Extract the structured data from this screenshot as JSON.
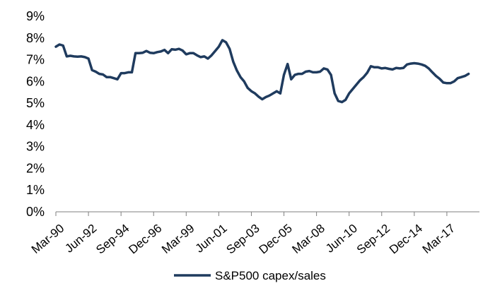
{
  "chart_data": {
    "type": "line",
    "title": "",
    "xlabel": "",
    "ylabel": "",
    "ylim": [
      0,
      9
    ],
    "xlim": [
      "1990-03",
      "2019-06"
    ],
    "y_ticks": [
      "0%",
      "1%",
      "2%",
      "3%",
      "4%",
      "5%",
      "6%",
      "7%",
      "8%",
      "9%"
    ],
    "x_ticks": [
      {
        "label": "Mar-90",
        "date": "1990-03"
      },
      {
        "label": "Jun-92",
        "date": "1992-06"
      },
      {
        "label": "Sep-94",
        "date": "1994-09"
      },
      {
        "label": "Dec-96",
        "date": "1996-12"
      },
      {
        "label": "Mar-99",
        "date": "1999-03"
      },
      {
        "label": "Jun-01",
        "date": "2001-06"
      },
      {
        "label": "Sep-03",
        "date": "2003-09"
      },
      {
        "label": "Dec-05",
        "date": "2005-12"
      },
      {
        "label": "Mar-08",
        "date": "2008-03"
      },
      {
        "label": "Jun-10",
        "date": "2010-06"
      },
      {
        "label": "Sep-12",
        "date": "2012-09"
      },
      {
        "label": "Dec-14",
        "date": "2014-12"
      },
      {
        "label": "Mar-17",
        "date": "2017-03"
      }
    ],
    "grid": false,
    "legend_position": "bottom",
    "series": [
      {
        "name": "S&P500 capex/sales",
        "color": "#1f3b5e",
        "points": [
          [
            "1990-03",
            7.6
          ],
          [
            "1990-06",
            7.7
          ],
          [
            "1990-09",
            7.65
          ],
          [
            "1990-12",
            7.15
          ],
          [
            "1991-03",
            7.18
          ],
          [
            "1991-06",
            7.15
          ],
          [
            "1991-09",
            7.14
          ],
          [
            "1991-12",
            7.15
          ],
          [
            "1992-03",
            7.12
          ],
          [
            "1992-06",
            7.05
          ],
          [
            "1992-09",
            6.52
          ],
          [
            "1992-12",
            6.45
          ],
          [
            "1993-03",
            6.35
          ],
          [
            "1993-06",
            6.32
          ],
          [
            "1993-09",
            6.2
          ],
          [
            "1993-12",
            6.2
          ],
          [
            "1994-03",
            6.15
          ],
          [
            "1994-06",
            6.1
          ],
          [
            "1994-09",
            6.38
          ],
          [
            "1994-12",
            6.38
          ],
          [
            "1995-03",
            6.42
          ],
          [
            "1995-06",
            6.42
          ],
          [
            "1995-09",
            7.3
          ],
          [
            "1995-12",
            7.3
          ],
          [
            "1996-03",
            7.32
          ],
          [
            "1996-06",
            7.4
          ],
          [
            "1996-09",
            7.32
          ],
          [
            "1996-12",
            7.3
          ],
          [
            "1997-03",
            7.35
          ],
          [
            "1997-06",
            7.38
          ],
          [
            "1997-09",
            7.45
          ],
          [
            "1997-12",
            7.3
          ],
          [
            "1998-03",
            7.48
          ],
          [
            "1998-06",
            7.46
          ],
          [
            "1998-09",
            7.5
          ],
          [
            "1998-12",
            7.42
          ],
          [
            "1999-03",
            7.25
          ],
          [
            "1999-06",
            7.3
          ],
          [
            "1999-09",
            7.3
          ],
          [
            "1999-12",
            7.2
          ],
          [
            "2000-03",
            7.12
          ],
          [
            "2000-06",
            7.15
          ],
          [
            "2000-09",
            7.05
          ],
          [
            "2000-12",
            7.2
          ],
          [
            "2001-03",
            7.4
          ],
          [
            "2001-06",
            7.6
          ],
          [
            "2001-09",
            7.9
          ],
          [
            "2001-12",
            7.8
          ],
          [
            "2002-03",
            7.5
          ],
          [
            "2002-06",
            6.9
          ],
          [
            "2002-09",
            6.5
          ],
          [
            "2002-12",
            6.2
          ],
          [
            "2003-03",
            6.0
          ],
          [
            "2003-06",
            5.7
          ],
          [
            "2003-09",
            5.55
          ],
          [
            "2003-12",
            5.45
          ],
          [
            "2004-03",
            5.3
          ],
          [
            "2004-06",
            5.18
          ],
          [
            "2004-09",
            5.28
          ],
          [
            "2004-12",
            5.35
          ],
          [
            "2005-03",
            5.45
          ],
          [
            "2005-06",
            5.55
          ],
          [
            "2005-09",
            5.45
          ],
          [
            "2005-12",
            6.3
          ],
          [
            "2006-03",
            6.8
          ],
          [
            "2006-06",
            6.1
          ],
          [
            "2006-09",
            6.3
          ],
          [
            "2006-12",
            6.35
          ],
          [
            "2007-03",
            6.35
          ],
          [
            "2007-06",
            6.45
          ],
          [
            "2007-09",
            6.48
          ],
          [
            "2007-12",
            6.42
          ],
          [
            "2008-03",
            6.42
          ],
          [
            "2008-06",
            6.45
          ],
          [
            "2008-09",
            6.6
          ],
          [
            "2008-12",
            6.55
          ],
          [
            "2009-03",
            6.3
          ],
          [
            "2009-06",
            5.45
          ],
          [
            "2009-09",
            5.1
          ],
          [
            "2009-12",
            5.05
          ],
          [
            "2010-03",
            5.15
          ],
          [
            "2010-06",
            5.45
          ],
          [
            "2010-09",
            5.65
          ],
          [
            "2010-12",
            5.85
          ],
          [
            "2011-03",
            6.05
          ],
          [
            "2011-06",
            6.2
          ],
          [
            "2011-09",
            6.4
          ],
          [
            "2011-12",
            6.7
          ],
          [
            "2012-03",
            6.65
          ],
          [
            "2012-06",
            6.65
          ],
          [
            "2012-09",
            6.6
          ],
          [
            "2012-12",
            6.62
          ],
          [
            "2013-03",
            6.58
          ],
          [
            "2013-06",
            6.55
          ],
          [
            "2013-09",
            6.62
          ],
          [
            "2013-12",
            6.6
          ],
          [
            "2014-03",
            6.62
          ],
          [
            "2014-06",
            6.78
          ],
          [
            "2014-09",
            6.82
          ],
          [
            "2014-12",
            6.84
          ],
          [
            "2015-03",
            6.82
          ],
          [
            "2015-06",
            6.78
          ],
          [
            "2015-09",
            6.72
          ],
          [
            "2015-12",
            6.6
          ],
          [
            "2016-03",
            6.42
          ],
          [
            "2016-06",
            6.25
          ],
          [
            "2016-09",
            6.12
          ],
          [
            "2016-12",
            5.95
          ],
          [
            "2017-03",
            5.92
          ],
          [
            "2017-06",
            5.92
          ],
          [
            "2017-09",
            6.0
          ],
          [
            "2017-12",
            6.15
          ],
          [
            "2018-03",
            6.2
          ],
          [
            "2018-06",
            6.25
          ],
          [
            "2018-09",
            6.35
          ]
        ]
      }
    ]
  }
}
